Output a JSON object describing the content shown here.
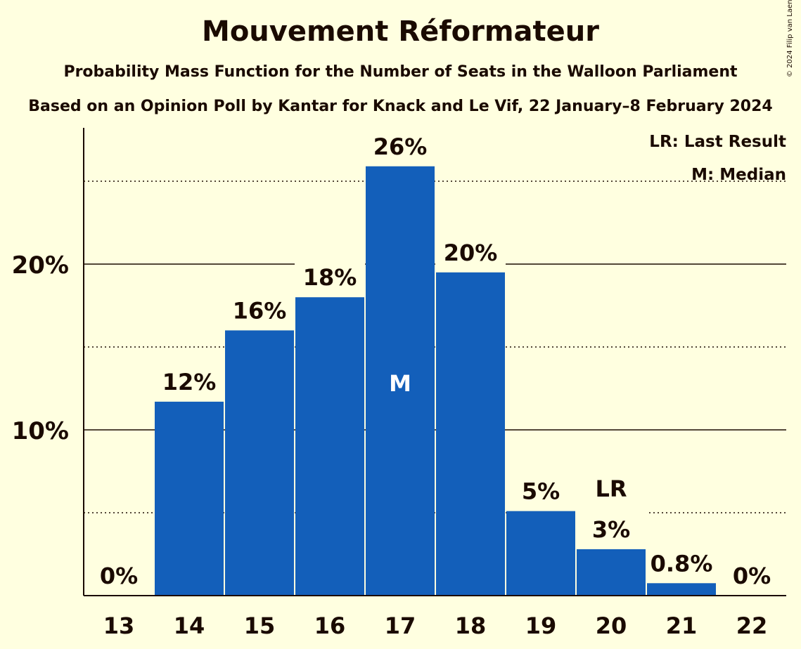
{
  "title": "Mouvement Réformateur",
  "subtitle": "Probability Mass Function for the Number of Seats in the Walloon Parliament",
  "source": "Based on an Opinion Poll by Kantar for Knack and Le Vif, 22 January–8 February 2024",
  "copyright": "© 2024 Filip van Laenen",
  "legend": {
    "last_result": "LR: Last Result",
    "median": "M: Median"
  },
  "colors": {
    "background": "#ffffe0",
    "bar": "#135fba",
    "text": "#1a0a00"
  },
  "chart_data": {
    "type": "bar",
    "categories": [
      "13",
      "14",
      "15",
      "16",
      "17",
      "18",
      "19",
      "20",
      "21",
      "22"
    ],
    "values": [
      0,
      11.7,
      16.0,
      18.0,
      25.9,
      19.5,
      5.1,
      2.8,
      0.75,
      0
    ],
    "data_labels": [
      "0%",
      "12%",
      "16%",
      "18%",
      "26%",
      "20%",
      "5%",
      "3%",
      "0.8%",
      "0%"
    ],
    "ylim": [
      0,
      28
    ],
    "y_ticks": [
      {
        "value": 10,
        "label": "10%"
      },
      {
        "value": 20,
        "label": "20%"
      }
    ],
    "dotted_gridlines": [
      5,
      15,
      25
    ],
    "median_category": "17",
    "median_marker": "M",
    "last_result_category": "20",
    "last_result_marker": "LR",
    "legend_position": "top-right"
  }
}
